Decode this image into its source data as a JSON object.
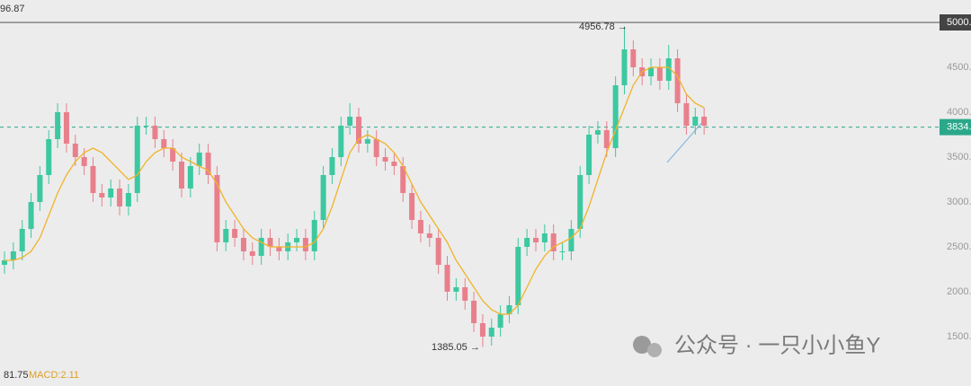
{
  "chart_data": {
    "type": "candlestick",
    "open": [
      2300,
      2350,
      2450,
      2700,
      3000,
      3300,
      3700,
      4000,
      3650,
      3500,
      3400,
      3100,
      3050,
      3150,
      2950,
      3100,
      3850,
      3850,
      3700,
      3600,
      3450,
      3150,
      3400,
      3550,
      3300,
      2550,
      2700,
      2600,
      2450,
      2400,
      2600,
      2500,
      2450,
      2550,
      2600,
      2450,
      2800,
      3300,
      3500,
      3850,
      3950,
      3650,
      3700,
      3500,
      3450,
      3400,
      3100,
      2800,
      2650,
      2600,
      2300,
      2000,
      2050,
      1900,
      1650,
      1500,
      1600,
      1750,
      1850,
      2500,
      2600,
      2550,
      2650,
      2450,
      2450,
      2700,
      3300,
      3750,
      3800,
      3600,
      4300,
      4700,
      4500,
      4400,
      4500,
      4350,
      4600,
      4100,
      3850,
      3950
    ],
    "high": [
      2450,
      2550,
      2800,
      3100,
      3400,
      3800,
      4100,
      4100,
      3750,
      3600,
      3500,
      3200,
      3250,
      3250,
      3200,
      3950,
      3950,
      3950,
      3800,
      3700,
      3550,
      3500,
      3650,
      3650,
      3400,
      2800,
      2800,
      2700,
      2550,
      2700,
      2700,
      2600,
      2650,
      2700,
      2700,
      2900,
      3400,
      3600,
      3950,
      4100,
      4050,
      3800,
      3800,
      3600,
      3550,
      3500,
      3200,
      2900,
      2750,
      2700,
      2400,
      2150,
      2150,
      2000,
      1750,
      1700,
      1850,
      1950,
      2600,
      2700,
      2700,
      2750,
      2750,
      2550,
      2800,
      3400,
      3850,
      3900,
      3900,
      4400,
      4956.78,
      4800,
      4600,
      4600,
      4600,
      4750,
      4700,
      4200,
      4050,
      4050
    ],
    "low": [
      2200,
      2250,
      2350,
      2600,
      2900,
      3200,
      3600,
      3550,
      3400,
      3300,
      3000,
      2950,
      2950,
      2850,
      2850,
      3000,
      3750,
      3600,
      3500,
      3350,
      3050,
      3050,
      3300,
      3200,
      2450,
      2450,
      2500,
      2350,
      2300,
      2300,
      2400,
      2350,
      2350,
      2450,
      2350,
      2350,
      2700,
      3200,
      3400,
      3750,
      3550,
      3550,
      3400,
      3350,
      3300,
      3000,
      2700,
      2550,
      2500,
      2200,
      1900,
      1900,
      1800,
      1550,
      1385.05,
      1400,
      1500,
      1650,
      1750,
      2400,
      2450,
      2450,
      2350,
      2350,
      2350,
      2600,
      3200,
      3650,
      3500,
      3500,
      4200,
      4400,
      4300,
      4300,
      4250,
      4250,
      4000,
      3750,
      3750,
      3750
    ],
    "close": [
      2350,
      2450,
      2700,
      3000,
      3300,
      3700,
      4000,
      3650,
      3500,
      3400,
      3100,
      3050,
      3150,
      2950,
      3100,
      3850,
      3850,
      3700,
      3600,
      3450,
      3150,
      3400,
      3550,
      3300,
      2550,
      2700,
      2600,
      2450,
      2400,
      2600,
      2500,
      2450,
      2550,
      2600,
      2450,
      2800,
      3300,
      3500,
      3850,
      3950,
      3650,
      3700,
      3500,
      3450,
      3400,
      3100,
      2800,
      2650,
      2600,
      2300,
      2000,
      2050,
      1900,
      1650,
      1500,
      1600,
      1750,
      1850,
      2500,
      2600,
      2550,
      2650,
      2450,
      2450,
      2700,
      3300,
      3750,
      3800,
      3600,
      4300,
      4700,
      4500,
      4400,
      4500,
      4350,
      4600,
      4100,
      3850,
      3950,
      3850
    ],
    "up_color": "#3cc8a0",
    "down_color": "#e8808c",
    "ma": {
      "color": "#f0b429",
      "values": [
        2350,
        2350,
        2380,
        2450,
        2600,
        2850,
        3100,
        3300,
        3450,
        3550,
        3600,
        3550,
        3450,
        3350,
        3250,
        3300,
        3450,
        3550,
        3600,
        3600,
        3500,
        3450,
        3400,
        3350,
        3200,
        3000,
        2850,
        2700,
        2600,
        2550,
        2500,
        2500,
        2500,
        2500,
        2500,
        2550,
        2700,
        2950,
        3250,
        3550,
        3700,
        3750,
        3700,
        3650,
        3550,
        3400,
        3200,
        3000,
        2850,
        2700,
        2550,
        2350,
        2200,
        2050,
        1900,
        1800,
        1750,
        1750,
        1850,
        2050,
        2250,
        2400,
        2500,
        2550,
        2600,
        2700,
        2950,
        3250,
        3550,
        3800,
        4050,
        4300,
        4450,
        4500,
        4500,
        4500,
        4400,
        4200,
        4100,
        4050
      ]
    },
    "ylim": [
      950,
      5250
    ],
    "yticks": [
      {
        "value": 5000,
        "label": "5000.0"
      },
      {
        "value": 4500,
        "label": "4500.0"
      },
      {
        "value": 4000,
        "label": "4000.0"
      },
      {
        "value": 3500,
        "label": "3500.0"
      },
      {
        "value": 3000,
        "label": "3000.0"
      },
      {
        "value": 2500,
        "label": "2500.0"
      },
      {
        "value": 2000,
        "label": "2000.0"
      },
      {
        "value": 1500,
        "label": "1500.0"
      }
    ],
    "price_line": {
      "value": 3834,
      "label": "3834.0",
      "color": "#2aa889"
    },
    "max_label": "4956.78 →",
    "min_label": "1385.05 →",
    "top_left_text": "96.87",
    "bottom_text": "81.75",
    "macd_text": "MACD:2.11",
    "watermark": "公众号 · 一只小小鱼Y"
  }
}
